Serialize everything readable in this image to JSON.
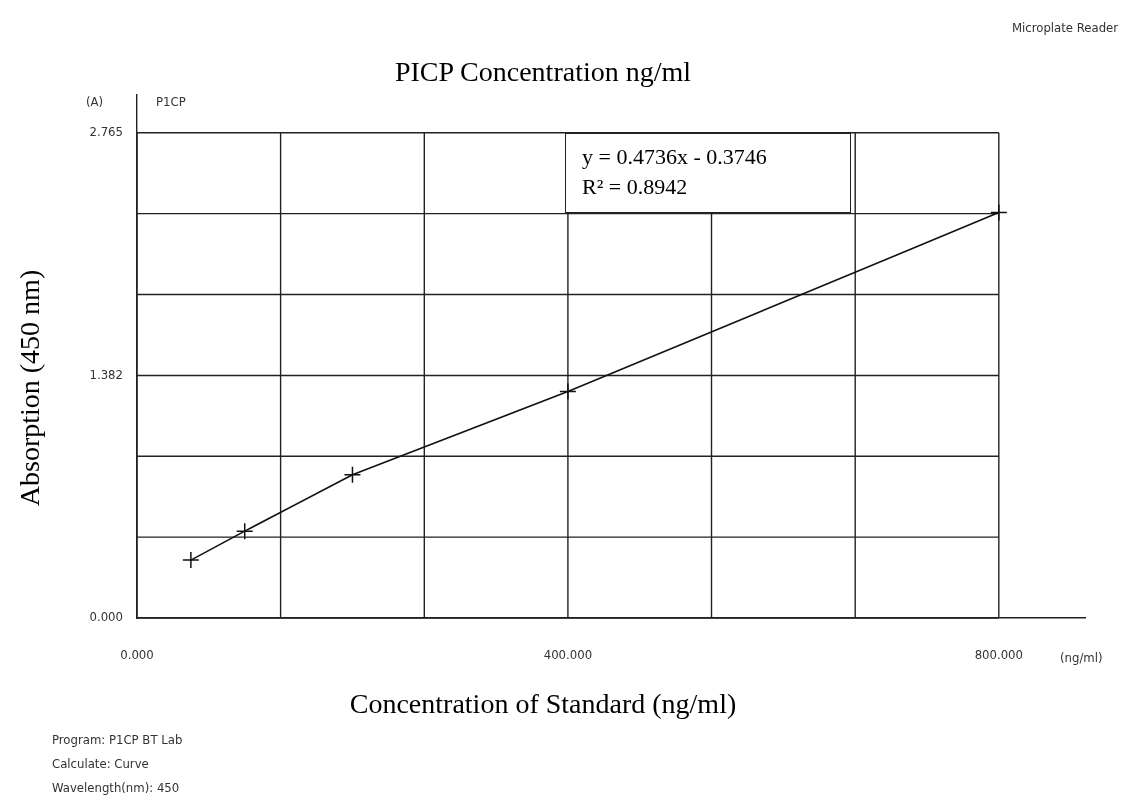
{
  "chart_data": {
    "type": "line",
    "title": "PICP Concentration ng/ml",
    "xlabel": "Concentration of Standard (ng/ml)",
    "ylabel": "Absorption (450 nm)",
    "annotations": [
      "(A)",
      "P1CP",
      "Microplate Reader",
      "y = 0.4736x - 0.3746\nR² = 0.8942",
      "(ng/ml)",
      "Program: P1CP BT Lab\nCalculate: Curve\nWavelength(nm): 450"
    ],
    "x": [
      50,
      100,
      200,
      400,
      800
    ],
    "series": [
      {
        "color": "#111111",
        "values": [
          0.33,
          0.495,
          0.816,
          1.29,
          2.31
        ]
      }
    ],
    "xlim": [
      0,
      880
    ],
    "ylim": [
      0,
      2.98
    ],
    "xticks": [
      {
        "value": 0,
        "label": "0.000"
      },
      {
        "value": 133.3,
        "label": null
      },
      {
        "value": 266.7,
        "label": null
      },
      {
        "value": 400,
        "label": "400.000"
      },
      {
        "value": 533.3,
        "label": null
      },
      {
        "value": 666.7,
        "label": null
      },
      {
        "value": 800,
        "label": "800.000"
      }
    ],
    "yticks": [
      {
        "value": 0,
        "label": "0.000"
      },
      {
        "value": 0.4608,
        "label": null
      },
      {
        "value": 0.9217,
        "label": null
      },
      {
        "value": 1.382,
        "label": "1.382"
      },
      {
        "value": 1.843,
        "label": null
      },
      {
        "value": 2.304,
        "label": null
      },
      {
        "value": 2.765,
        "label": "2.765"
      }
    ],
    "grid": true,
    "legend": false,
    "marker": "cross",
    "line_style": "solid"
  }
}
